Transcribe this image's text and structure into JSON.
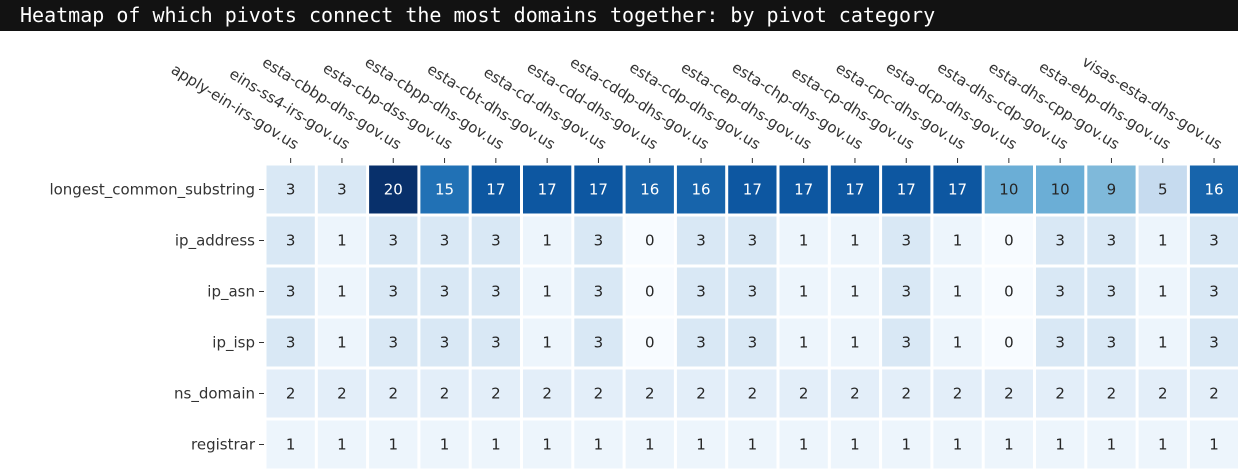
{
  "title": "Heatmap of which pivots connect the most domains together: by pivot category",
  "chart_data": {
    "type": "heatmap",
    "colormap": "Blues",
    "vmin": 0,
    "vmax": 20,
    "columns": [
      "apply-ein-irs-gov.us",
      "eins-ss4-irs-gov.us",
      "esta-cbbp-dhs-gov.us",
      "esta-cbp-dss-gov.us",
      "esta-cbpp-dhs-gov.us",
      "esta-cbt-dhs-gov.us",
      "esta-cd-dhs-gov.us",
      "esta-cdd-dhs-gov.us",
      "esta-cddp-dhs-gov.us",
      "esta-cdp-dhs-gov.us",
      "esta-cep-dhs-gov.us",
      "esta-chp-dhs-gov.us",
      "esta-cp-dhs-gov.us",
      "esta-cpc-dhs-gov.us",
      "esta-dcp-dhs-gov.us",
      "esta-dhs-cdp-gov.us",
      "esta-dhs-cpp-gov.us",
      "esta-ebp-dhs-gov.us",
      "visas-esta-dhs-gov.us"
    ],
    "rows": [
      "longest_common_substring",
      "ip_address",
      "ip_asn",
      "ip_isp",
      "ns_domain",
      "registrar"
    ],
    "values": [
      [
        3,
        3,
        20,
        15,
        17,
        17,
        17,
        16,
        16,
        17,
        17,
        17,
        17,
        17,
        10,
        10,
        9,
        5,
        16
      ],
      [
        3,
        1,
        3,
        3,
        3,
        1,
        3,
        0,
        3,
        3,
        1,
        1,
        3,
        1,
        0,
        3,
        3,
        1,
        3
      ],
      [
        3,
        1,
        3,
        3,
        3,
        1,
        3,
        0,
        3,
        3,
        1,
        1,
        3,
        1,
        0,
        3,
        3,
        1,
        3
      ],
      [
        3,
        1,
        3,
        3,
        3,
        1,
        3,
        0,
        3,
        3,
        1,
        1,
        3,
        1,
        0,
        3,
        3,
        1,
        3
      ],
      [
        2,
        2,
        2,
        2,
        2,
        2,
        2,
        2,
        2,
        2,
        2,
        2,
        2,
        2,
        2,
        2,
        2,
        2,
        2
      ],
      [
        1,
        1,
        1,
        1,
        1,
        1,
        1,
        1,
        1,
        1,
        1,
        1,
        1,
        1,
        1,
        1,
        1,
        1,
        1
      ]
    ]
  }
}
